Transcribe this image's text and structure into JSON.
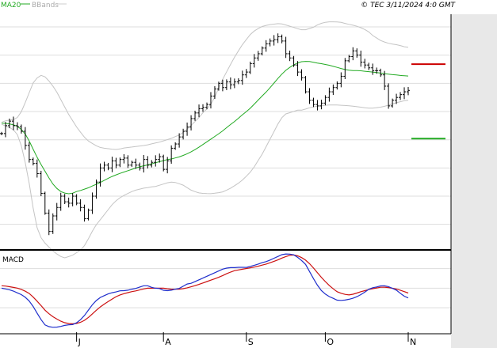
{
  "header": {
    "ma_label": "MA20",
    "bbands_label": "BBands",
    "copyright": "© TEC 3/11/2024 4:0 GMT"
  },
  "colors": {
    "ma": "#22aa22",
    "bbands": "#bbbbbb",
    "candle": "#000000",
    "resistance": "#cc0000",
    "support": "#22aa22",
    "macd": "#1f2ecc",
    "signal": "#cc1111",
    "grid": "#dddddd",
    "axis": "#000000"
  },
  "chart_data": [
    {
      "type": "line",
      "panel": "price",
      "y_ticks": [
        "3700",
        "3600",
        "3500",
        "3400",
        "3300",
        "3200",
        "3100",
        "3000"
      ],
      "ylim": [
        2915,
        3745
      ],
      "x_ticks": [
        "J",
        "A",
        "S",
        "O",
        "N"
      ],
      "x_tick_bars": [
        19,
        41,
        62,
        82,
        103
      ],
      "n_bars": 104,
      "levels": [
        {
          "name": "resistance",
          "value": 3568,
          "label": "3568"
        },
        {
          "name": "support",
          "value": 3304,
          "label": "3304"
        }
      ],
      "close": [
        3322,
        3350,
        3366,
        3350,
        3346,
        3330,
        3280,
        3230,
        3216,
        3180,
        3110,
        3040,
        2975,
        3030,
        3060,
        3100,
        3080,
        3075,
        3100,
        3075,
        3060,
        3020,
        3050,
        3100,
        3150,
        3200,
        3210,
        3200,
        3225,
        3210,
        3230,
        3235,
        3210,
        3220,
        3210,
        3200,
        3230,
        3210,
        3220,
        3230,
        3240,
        3195,
        3225,
        3270,
        3285,
        3310,
        3330,
        3345,
        3375,
        3395,
        3410,
        3415,
        3425,
        3455,
        3480,
        3500,
        3485,
        3505,
        3495,
        3505,
        3510,
        3530,
        3540,
        3570,
        3590,
        3605,
        3625,
        3640,
        3650,
        3655,
        3665,
        3650,
        3605,
        3590,
        3565,
        3540,
        3520,
        3470,
        3440,
        3425,
        3420,
        3430,
        3450,
        3470,
        3485,
        3500,
        3525,
        3580,
        3595,
        3615,
        3600,
        3575,
        3565,
        3555,
        3545,
        3545,
        3530,
        3490,
        3420,
        3440,
        3450,
        3460,
        3470,
        3475
      ],
      "ma20": [
        3359,
        3358,
        3356,
        3352,
        3347,
        3333,
        3315,
        3285,
        3255,
        3225,
        3200,
        3175,
        3150,
        3132,
        3118,
        3112,
        3108,
        3110,
        3116,
        3120,
        3125,
        3130,
        3137,
        3143,
        3150,
        3158,
        3166,
        3172,
        3178,
        3183,
        3188,
        3193,
        3198,
        3203,
        3207,
        3210,
        3214,
        3218,
        3222,
        3226,
        3230,
        3232,
        3236,
        3240,
        3246,
        3252,
        3260,
        3268,
        3278,
        3288,
        3298,
        3308,
        3318,
        3328,
        3340,
        3352,
        3363,
        3375,
        3388,
        3400,
        3413,
        3428,
        3443,
        3458,
        3473,
        3490,
        3507,
        3524,
        3540,
        3552,
        3562,
        3570,
        3576,
        3578,
        3578,
        3575,
        3572,
        3570,
        3567,
        3564,
        3560,
        3556,
        3552,
        3548,
        3546,
        3545,
        3545,
        3544,
        3542,
        3541,
        3539,
        3537,
        3535,
        3533,
        3531,
        3530,
        3528,
        3527,
        3526
      ],
      "bb_upper": [
        3362,
        3368,
        3370,
        3372,
        3385,
        3420,
        3460,
        3500,
        3520,
        3530,
        3520,
        3500,
        3480,
        3450,
        3420,
        3390,
        3365,
        3340,
        3320,
        3300,
        3290,
        3280,
        3273,
        3270,
        3268,
        3266,
        3265,
        3270,
        3272,
        3274,
        3276,
        3278,
        3280,
        3283,
        3287,
        3290,
        3295,
        3300,
        3305,
        3312,
        3318,
        3330,
        3345,
        3360,
        3375,
        3395,
        3410,
        3430,
        3460,
        3500,
        3530,
        3560,
        3590,
        3615,
        3640,
        3660,
        3680,
        3690,
        3700,
        3705,
        3708,
        3710,
        3712,
        3710,
        3705,
        3700,
        3695,
        3690,
        3690,
        3695,
        3700,
        3710,
        3715,
        3718,
        3718,
        3718,
        3716,
        3712,
        3708,
        3705,
        3700,
        3693,
        3685,
        3670,
        3660,
        3650,
        3645,
        3640,
        3638,
        3635,
        3630,
        3628
      ],
      "bb_lower": [
        3355,
        3348,
        3342,
        3332,
        3308,
        3245,
        3170,
        3070,
        2990,
        2950,
        2930,
        2915,
        2900,
        2890,
        2880,
        2885,
        2890,
        2900,
        2910,
        2930,
        2960,
        2990,
        3010,
        3030,
        3050,
        3070,
        3085,
        3097,
        3105,
        3113,
        3120,
        3124,
        3128,
        3130,
        3133,
        3135,
        3140,
        3145,
        3150,
        3150,
        3145,
        3140,
        3130,
        3120,
        3115,
        3110,
        3110,
        3108,
        3110,
        3112,
        3115,
        3122,
        3130,
        3140,
        3150,
        3165,
        3180,
        3200,
        3225,
        3250,
        3280,
        3310,
        3340,
        3370,
        3390,
        3395,
        3400,
        3405,
        3405,
        3410,
        3415,
        3418,
        3420,
        3422,
        3423,
        3423,
        3423,
        3422,
        3421,
        3420,
        3418,
        3416,
        3414,
        3412,
        3412,
        3414,
        3416,
        3420,
        3425,
        3430,
        3434,
        3438,
        3440
      ],
      "ylabel": ""
    },
    {
      "type": "line",
      "panel": "macd",
      "title": "MACD",
      "y_ticks": [
        "60",
        "20",
        "-20"
      ],
      "y_tick_values": [
        60,
        20,
        -20
      ],
      "ylim": [
        -70,
        95
      ],
      "series": [
        {
          "name": "macd",
          "values": [
            20,
            18,
            15,
            10,
            5,
            -5,
            -20,
            -40,
            -55,
            -60,
            -60,
            -58,
            -55,
            -55,
            -50,
            -40,
            -25,
            -10,
            0,
            5,
            10,
            12,
            15,
            15,
            18,
            20,
            25,
            25,
            20,
            20,
            15,
            15,
            18,
            20,
            28,
            30,
            35,
            40,
            45,
            50,
            55,
            60,
            62,
            62,
            63,
            62,
            65,
            68,
            72,
            75,
            80,
            85,
            90,
            90,
            88,
            80,
            70,
            50,
            30,
            15,
            5,
            0,
            -5,
            -5,
            -3,
            0,
            5,
            12,
            20,
            22,
            25,
            25,
            20,
            15,
            5,
            0
          ]
        },
        {
          "name": "signal",
          "values": [
            25,
            24,
            22,
            20,
            16,
            10,
            0,
            -12,
            -25,
            -35,
            -42,
            -48,
            -52,
            -53,
            -52,
            -48,
            -40,
            -30,
            -20,
            -12,
            -5,
            2,
            7,
            10,
            13,
            15,
            18,
            20,
            20,
            20,
            20,
            18,
            18,
            18,
            20,
            23,
            26,
            30,
            34,
            38,
            42,
            47,
            52,
            56,
            58,
            60,
            62,
            64,
            67,
            70,
            74,
            78,
            83,
            87,
            88,
            85,
            78,
            68,
            55,
            42,
            30,
            20,
            12,
            8,
            6,
            8,
            12,
            15,
            18,
            20,
            22,
            22,
            20,
            18,
            14,
            10
          ]
        }
      ]
    }
  ]
}
